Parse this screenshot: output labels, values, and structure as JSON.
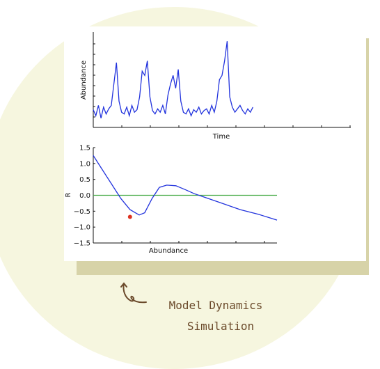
{
  "caption": {
    "line1": "Model Dynamics",
    "line2": "Simulation"
  },
  "colors": {
    "background_blob": "#f6f6df",
    "shadow_card": "#d7d3a8",
    "series_line": "#2233dd",
    "zero_line": "#44aa44",
    "point": "#dd3322",
    "caption_text": "#6b4a2b"
  },
  "icons": {
    "caption_arrow": "curly-arrow-icon"
  },
  "chart_data": [
    {
      "type": "line",
      "title": "",
      "xlabel": "Time",
      "ylabel": "Abundance",
      "xlim": [
        0,
        1
      ],
      "ylim": [
        0,
        1
      ],
      "grid": false,
      "x": [
        0,
        0.01,
        0.02,
        0.03,
        0.04,
        0.05,
        0.06,
        0.07,
        0.08,
        0.09,
        0.1,
        0.11,
        0.12,
        0.13,
        0.14,
        0.15,
        0.16,
        0.17,
        0.18,
        0.19,
        0.2,
        0.21,
        0.22,
        0.23,
        0.24,
        0.25,
        0.26,
        0.27,
        0.28,
        0.29,
        0.3,
        0.31,
        0.32,
        0.33,
        0.34,
        0.35,
        0.36,
        0.37,
        0.38,
        0.39,
        0.4,
        0.41,
        0.42,
        0.43,
        0.44,
        0.45,
        0.46,
        0.47,
        0.48,
        0.49,
        0.5,
        0.51,
        0.52,
        0.53,
        0.54,
        0.55,
        0.56,
        0.57,
        0.58,
        0.59,
        0.6,
        0.61,
        0.62
      ],
      "series": [
        {
          "values": [
            0.15,
            0.08,
            0.2,
            0.05,
            0.18,
            0.1,
            0.16,
            0.2,
            0.45,
            0.7,
            0.25,
            0.12,
            0.1,
            0.18,
            0.08,
            0.2,
            0.12,
            0.15,
            0.3,
            0.6,
            0.55,
            0.72,
            0.3,
            0.14,
            0.1,
            0.16,
            0.12,
            0.2,
            0.1,
            0.32,
            0.45,
            0.55,
            0.4,
            0.62,
            0.25,
            0.12,
            0.1,
            0.16,
            0.08,
            0.15,
            0.12,
            0.18,
            0.1,
            0.14,
            0.16,
            0.1,
            0.2,
            0.12,
            0.25,
            0.5,
            0.55,
            0.72,
            0.95,
            0.3,
            0.18,
            0.12,
            0.16,
            0.2,
            0.14,
            0.1,
            0.16,
            0.12,
            0.18
          ]
        }
      ]
    },
    {
      "type": "line",
      "title": "",
      "xlabel": "Abundance",
      "ylabel": "R",
      "xlim": [
        0,
        1
      ],
      "ylim": [
        -1.5,
        1.5
      ],
      "yticks": [
        "1.5",
        "1.0",
        "0.5",
        "0.0",
        "−0.5",
        "−1.0",
        "−1.5"
      ],
      "grid": false,
      "series": [
        {
          "name": "",
          "x": [
            0,
            0.05,
            0.1,
            0.15,
            0.2,
            0.25,
            0.28,
            0.32,
            0.36,
            0.4,
            0.45,
            0.5,
            0.55,
            0.6,
            0.7,
            0.8,
            0.9,
            1.0
          ],
          "values": [
            1.25,
            0.8,
            0.35,
            -0.1,
            -0.45,
            -0.62,
            -0.55,
            -0.1,
            0.25,
            0.32,
            0.3,
            0.18,
            0.05,
            -0.05,
            -0.25,
            -0.45,
            -0.6,
            -0.78
          ]
        },
        {
          "name": "",
          "x": [
            0,
            1
          ],
          "values": [
            0,
            0
          ]
        }
      ],
      "points": [
        {
          "x": 0.2,
          "y": -0.68
        }
      ]
    }
  ]
}
